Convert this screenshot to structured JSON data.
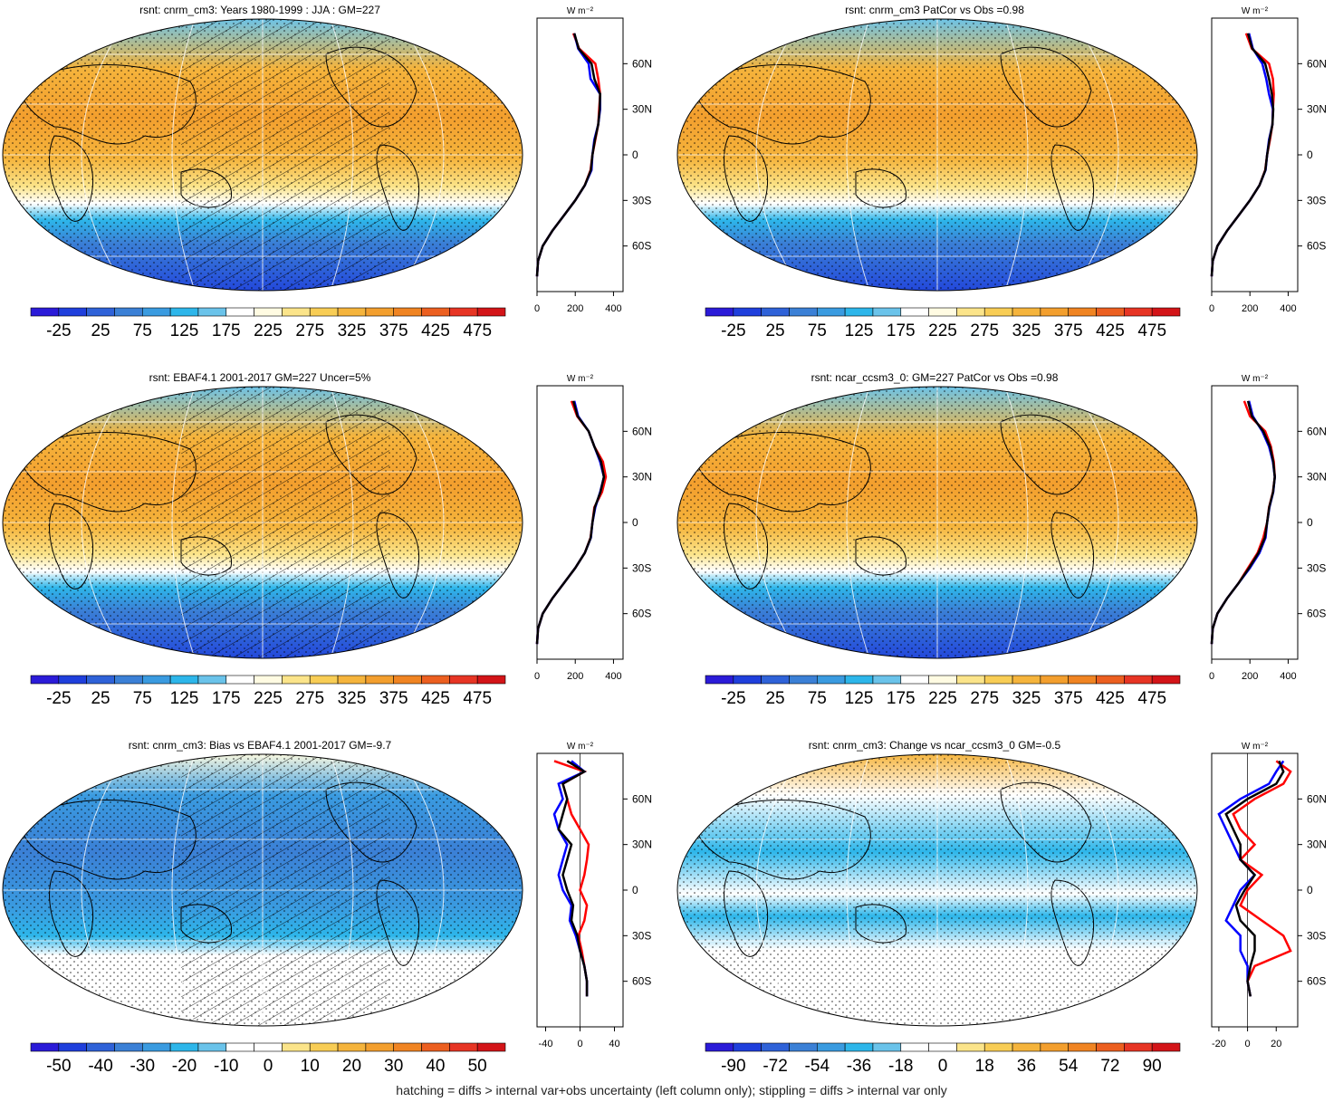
{
  "colors": {
    "abs_palette": [
      "#2b1bd8",
      "#1f3fdc",
      "#2f62d8",
      "#3b80d6",
      "#3a9be0",
      "#2db6ea",
      "#6ac3ea",
      "#ffffff",
      "#fffbe2",
      "#fbe48a",
      "#f8cd55",
      "#f5b43c",
      "#f39f2e",
      "#f08422",
      "#ec5f20",
      "#e73524",
      "#d31418"
    ],
    "bias_palette": [
      "#2b1bd8",
      "#1f3fdc",
      "#2f62d8",
      "#3b80d6",
      "#3a9be0",
      "#2db6ea",
      "#6ac3ea",
      "#ffffff",
      "#ffffff",
      "#fbe48a",
      "#f8cd55",
      "#f5b43c",
      "#f39f2e",
      "#f08422",
      "#ec5f20",
      "#e73524",
      "#d31418"
    ],
    "line_model": "#ff0000",
    "line_obs": "#0000ff",
    "line_other": "#000000"
  },
  "footer": "hatching = diffs > internal var+obs uncertainty (left column only); stippling = diffs > internal var only",
  "panels": [
    {
      "id": "p1",
      "title": "rsnt: cnrm_cm3: Years 1980-1999 : JJA : GM=227",
      "colorbar_labels": [
        "-25",
        "25",
        "75",
        "125",
        "175",
        "225",
        "275",
        "325",
        "375",
        "425",
        "475"
      ],
      "profile_unit": "W m",
      "profile_xticks": [
        "0",
        "200",
        "400"
      ],
      "lat_labels": [
        "60N",
        "30N",
        "0",
        "30S",
        "60S"
      ]
    },
    {
      "id": "p2",
      "title": "rsnt: cnrm_cm3 PatCor vs Obs =0.98",
      "colorbar_labels": [
        "-25",
        "25",
        "75",
        "125",
        "175",
        "225",
        "275",
        "325",
        "375",
        "425",
        "475"
      ],
      "profile_unit": "W m",
      "profile_xticks": [
        "0",
        "200",
        "400"
      ],
      "lat_labels": [
        "60N",
        "30N",
        "0",
        "30S",
        "60S"
      ]
    },
    {
      "id": "p3",
      "title": "rsnt: EBAF4.1 2001-2017 GM=227 Uncer=5%",
      "colorbar_labels": [
        "-25",
        "25",
        "75",
        "125",
        "175",
        "225",
        "275",
        "325",
        "375",
        "425",
        "475"
      ],
      "profile_unit": "W m",
      "profile_xticks": [
        "0",
        "200",
        "400"
      ],
      "lat_labels": [
        "60N",
        "30N",
        "0",
        "30S",
        "60S"
      ]
    },
    {
      "id": "p4",
      "title": "rsnt: ncar_ccsm3_0: GM=227 PatCor vs Obs =0.98",
      "colorbar_labels": [
        "-25",
        "25",
        "75",
        "125",
        "175",
        "225",
        "275",
        "325",
        "375",
        "425",
        "475"
      ],
      "profile_unit": "W m",
      "profile_xticks": [
        "0",
        "200",
        "400"
      ],
      "lat_labels": [
        "60N",
        "30N",
        "0",
        "30S",
        "60S"
      ]
    },
    {
      "id": "p5",
      "title": "rsnt: cnrm_cm3: Bias vs EBAF4.1 2001-2017 GM=-9.7",
      "colorbar_labels": [
        "-50",
        "-40",
        "-30",
        "-20",
        "-10",
        "0",
        "10",
        "20",
        "30",
        "40",
        "50"
      ],
      "profile_unit": "W m",
      "profile_xticks": [
        "-40",
        "0",
        "40"
      ],
      "lat_labels": [
        "60N",
        "30N",
        "0",
        "30S",
        "60S"
      ]
    },
    {
      "id": "p6",
      "title": "rsnt: cnrm_cm3: Change vs ncar_ccsm3_0 GM=-0.5",
      "colorbar_labels": [
        "-90",
        "-72",
        "-54",
        "-36",
        "-18",
        "0",
        "18",
        "36",
        "54",
        "72",
        "90"
      ],
      "profile_unit": "W m",
      "profile_xticks": [
        "-20",
        "0",
        "20"
      ],
      "lat_labels": [
        "60N",
        "30N",
        "0",
        "30S",
        "60S"
      ]
    }
  ],
  "chart_data": [
    {
      "type": "heatmap",
      "title": "rsnt: cnrm_cm3: Years 1980-1999 : JJA : GM=227",
      "colorbar_ticks": [
        -25,
        25,
        75,
        125,
        175,
        225,
        275,
        325,
        375,
        425,
        475
      ],
      "zonal_profile": {
        "lat": [
          80,
          70,
          60,
          50,
          40,
          30,
          20,
          10,
          0,
          -10,
          -20,
          -30,
          -40,
          -50,
          -60,
          -70,
          -80
        ],
        "series": [
          {
            "color": "red",
            "values": [
              190,
              220,
              305,
              320,
              330,
              325,
              320,
              305,
              290,
              280,
              250,
              200,
              140,
              80,
              30,
              5,
              0
            ]
          },
          {
            "color": "blue",
            "values": [
              195,
              215,
              270,
              280,
              330,
              330,
              320,
              300,
              290,
              285,
              250,
              200,
              140,
              80,
              30,
              5,
              0
            ]
          },
          {
            "color": "black",
            "values": [
              195,
              218,
              285,
              300,
              330,
              328,
              320,
              303,
              290,
              282,
              250,
              200,
              140,
              80,
              30,
              5,
              0
            ]
          }
        ],
        "xlim": [
          0,
          450
        ]
      }
    },
    {
      "type": "heatmap",
      "title": "rsnt: cnrm_cm3 PatCor vs Obs =0.98",
      "colorbar_ticks": [
        -25,
        25,
        75,
        125,
        175,
        225,
        275,
        325,
        375,
        425,
        475
      ],
      "zonal_profile": {
        "lat": [
          80,
          70,
          60,
          50,
          40,
          30,
          20,
          10,
          0,
          -10,
          -20,
          -30,
          -40,
          -50,
          -60,
          -70,
          -80
        ],
        "series": [
          {
            "color": "red",
            "values": [
              180,
              210,
              300,
              320,
              325,
              320,
              318,
              305,
              290,
              280,
              250,
              200,
              140,
              80,
              30,
              5,
              0
            ]
          },
          {
            "color": "blue",
            "values": [
              195,
              215,
              265,
              285,
              300,
              320,
              318,
              300,
              290,
              282,
              250,
              200,
              140,
              80,
              30,
              5,
              0
            ]
          },
          {
            "color": "black",
            "values": [
              190,
              212,
              280,
              300,
              315,
              322,
              318,
              302,
              290,
              281,
              250,
              200,
              140,
              80,
              30,
              5,
              0
            ]
          }
        ],
        "xlim": [
          0,
          450
        ]
      }
    },
    {
      "type": "heatmap",
      "title": "rsnt: EBAF4.1 2001-2017 GM=227 Uncer=5%",
      "colorbar_ticks": [
        -25,
        25,
        75,
        125,
        175,
        225,
        275,
        325,
        375,
        425,
        475
      ],
      "zonal_profile": {
        "lat": [
          80,
          70,
          60,
          50,
          40,
          30,
          20,
          10,
          0,
          -10,
          -20,
          -30,
          -40,
          -50,
          -60,
          -70,
          -80
        ],
        "series": [
          {
            "color": "red",
            "values": [
              180,
              210,
              270,
              300,
              345,
              360,
              340,
              300,
              290,
              280,
              250,
              200,
              140,
              80,
              30,
              5,
              0
            ]
          },
          {
            "color": "blue",
            "values": [
              195,
              215,
              270,
              300,
              330,
              350,
              330,
              305,
              290,
              282,
              250,
              200,
              140,
              80,
              30,
              5,
              0
            ]
          },
          {
            "color": "black",
            "values": [
              190,
              212,
              270,
              300,
              335,
              350,
              332,
              302,
              290,
              281,
              250,
              200,
              140,
              80,
              30,
              5,
              0
            ]
          }
        ],
        "xlim": [
          0,
          450
        ]
      }
    },
    {
      "type": "heatmap",
      "title": "rsnt: ncar_ccsm3_0: GM=227 PatCor vs Obs =0.98",
      "colorbar_ticks": [
        -25,
        25,
        75,
        125,
        175,
        225,
        275,
        325,
        375,
        425,
        475
      ],
      "zonal_profile": {
        "lat": [
          80,
          70,
          60,
          50,
          40,
          30,
          20,
          10,
          0,
          -10,
          -20,
          -30,
          -40,
          -50,
          -60,
          -70,
          -80
        ],
        "series": [
          {
            "color": "red",
            "values": [
              170,
              200,
              280,
              310,
              325,
              330,
              320,
              300,
              290,
              270,
              240,
              190,
              140,
              80,
              30,
              5,
              0
            ]
          },
          {
            "color": "blue",
            "values": [
              195,
              215,
              265,
              300,
              320,
              330,
              322,
              302,
              290,
              282,
              250,
              200,
              140,
              80,
              30,
              5,
              0
            ]
          },
          {
            "color": "black",
            "values": [
              190,
              210,
              270,
              305,
              322,
              330,
              321,
              301,
              290,
              278,
              245,
              195,
              140,
              80,
              30,
              5,
              0
            ]
          }
        ],
        "xlim": [
          0,
          450
        ]
      }
    },
    {
      "type": "heatmap",
      "title": "rsnt: cnrm_cm3: Bias vs EBAF4.1 2001-2017 GM=-9.7",
      "colorbar_ticks": [
        -50,
        -40,
        -30,
        -20,
        -10,
        0,
        10,
        20,
        30,
        40,
        50
      ],
      "zonal_profile": {
        "lat": [
          85,
          78,
          70,
          60,
          50,
          40,
          30,
          20,
          10,
          0,
          -10,
          -20,
          -30,
          -40,
          -50,
          -60,
          -70
        ],
        "series": [
          {
            "color": "red",
            "values": [
              -30,
              5,
              -20,
              -15,
              -10,
              0,
              10,
              8,
              5,
              0,
              8,
              5,
              -2,
              2,
              5,
              8,
              8
            ]
          },
          {
            "color": "blue",
            "values": [
              -10,
              5,
              -25,
              -20,
              -30,
              -25,
              -15,
              -20,
              -25,
              -20,
              -10,
              -12,
              -5,
              0,
              5,
              8,
              8
            ]
          },
          {
            "color": "black",
            "values": [
              -15,
              5,
              -20,
              -15,
              -20,
              -25,
              -10,
              -15,
              -20,
              -15,
              -8,
              -10,
              -3,
              0,
              5,
              8,
              8
            ]
          }
        ],
        "xlim": [
          -50,
          50
        ]
      }
    },
    {
      "type": "heatmap",
      "title": "rsnt: cnrm_cm3: Change vs ncar_ccsm3_0 GM=-0.5",
      "colorbar_ticks": [
        -90,
        -72,
        -54,
        -36,
        -18,
        0,
        18,
        36,
        54,
        72,
        90
      ],
      "zonal_profile": {
        "lat": [
          85,
          78,
          70,
          60,
          50,
          40,
          30,
          20,
          10,
          0,
          -10,
          -20,
          -30,
          -40,
          -50,
          -60,
          -70
        ],
        "series": [
          {
            "color": "red",
            "values": [
              20,
              30,
              25,
              5,
              -10,
              -5,
              5,
              -5,
              10,
              0,
              -5,
              10,
              25,
              30,
              5,
              0,
              2
            ]
          },
          {
            "color": "blue",
            "values": [
              25,
              20,
              15,
              -5,
              -20,
              -15,
              -10,
              -5,
              5,
              -5,
              -10,
              -15,
              -5,
              -5,
              0,
              0,
              2
            ]
          },
          {
            "color": "black",
            "values": [
              22,
              25,
              20,
              0,
              -15,
              -10,
              -5,
              -5,
              5,
              -2,
              -8,
              -5,
              5,
              5,
              2,
              0,
              2
            ]
          }
        ],
        "xlim": [
          -25,
          35
        ]
      }
    }
  ]
}
